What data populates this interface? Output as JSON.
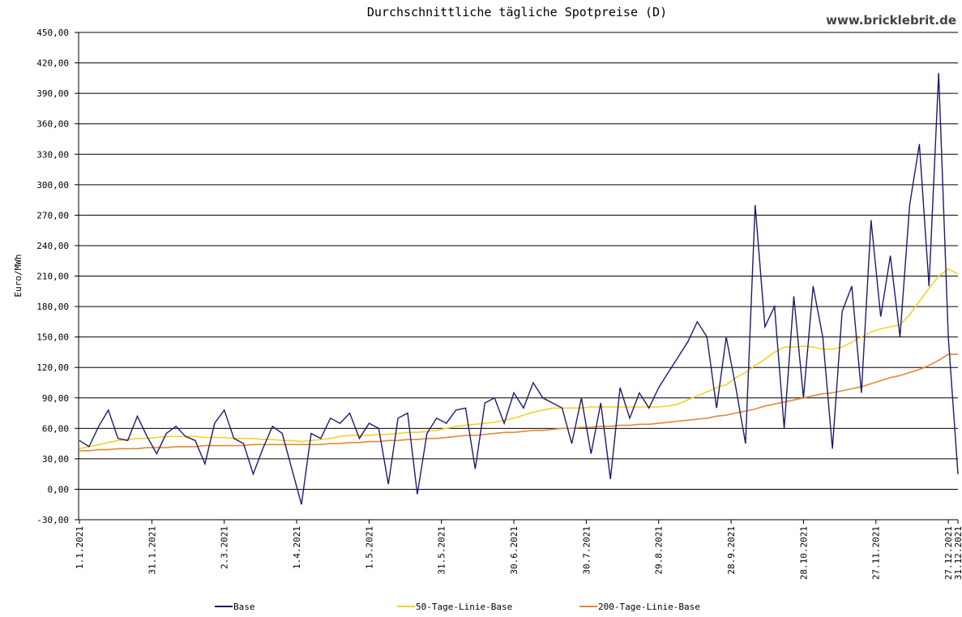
{
  "chart_data": {
    "type": "line",
    "title": "Durchschnittliche tägliche Spotpreise (D)",
    "watermark": "www.bricklebrit.de",
    "y_label": "Euro/MWh",
    "ylim": [
      -30,
      450
    ],
    "yticks": [
      {
        "value": -30,
        "label": "-30,00"
      },
      {
        "value": 0,
        "label": "0,00"
      },
      {
        "value": 30,
        "label": "30,00"
      },
      {
        "value": 60,
        "label": "60,00"
      },
      {
        "value": 90,
        "label": "90,00"
      },
      {
        "value": 120,
        "label": "120,00"
      },
      {
        "value": 150,
        "label": "150,00"
      },
      {
        "value": 180,
        "label": "180,00"
      },
      {
        "value": 210,
        "label": "210,00"
      },
      {
        "value": 240,
        "label": "240,00"
      },
      {
        "value": 270,
        "label": "270,00"
      },
      {
        "value": 300,
        "label": "300,00"
      },
      {
        "value": 330,
        "label": "330,00"
      },
      {
        "value": 360,
        "label": "360,00"
      },
      {
        "value": 390,
        "label": "390,00"
      },
      {
        "value": 420,
        "label": "420,00"
      },
      {
        "value": 450,
        "label": "450,00"
      }
    ],
    "xlim": [
      0,
      364
    ],
    "xticks": [
      {
        "value": 0,
        "label": "1.1.2021"
      },
      {
        "value": 30,
        "label": "31.1.2021"
      },
      {
        "value": 60,
        "label": "2.3.2021"
      },
      {
        "value": 90,
        "label": "1.4.2021"
      },
      {
        "value": 120,
        "label": "1.5.2021"
      },
      {
        "value": 150,
        "label": "31.5.2021"
      },
      {
        "value": 180,
        "label": "30.6.2021"
      },
      {
        "value": 210,
        "label": "30.7.2021"
      },
      {
        "value": 240,
        "label": "29.8.2021"
      },
      {
        "value": 270,
        "label": "28.9.2021"
      },
      {
        "value": 300,
        "label": "28.10.2021"
      },
      {
        "value": 330,
        "label": "27.11.2021"
      },
      {
        "value": 360,
        "label": "27.12.2021"
      },
      {
        "value": 364,
        "label": "31.12.2021"
      }
    ],
    "grid": true,
    "x": [
      0,
      4,
      8,
      12,
      16,
      20,
      24,
      28,
      32,
      36,
      40,
      44,
      48,
      52,
      56,
      60,
      64,
      68,
      72,
      76,
      80,
      84,
      88,
      92,
      96,
      100,
      104,
      108,
      112,
      116,
      120,
      124,
      128,
      132,
      136,
      140,
      144,
      148,
      152,
      156,
      160,
      164,
      168,
      172,
      176,
      180,
      184,
      188,
      192,
      196,
      200,
      204,
      208,
      212,
      216,
      220,
      224,
      228,
      232,
      236,
      240,
      244,
      248,
      252,
      256,
      260,
      264,
      268,
      272,
      276,
      280,
      284,
      288,
      292,
      296,
      300,
      304,
      308,
      312,
      316,
      320,
      324,
      328,
      332,
      336,
      340,
      344,
      348,
      352,
      356,
      360,
      364
    ],
    "series": [
      {
        "name": "Base",
        "color": "#1c1c6e",
        "values": [
          48,
          42,
          62,
          78,
          50,
          48,
          72,
          52,
          35,
          55,
          62,
          52,
          48,
          25,
          65,
          78,
          50,
          45,
          15,
          40,
          62,
          55,
          20,
          -15,
          55,
          50,
          70,
          65,
          75,
          50,
          65,
          60,
          5,
          70,
          75,
          -5,
          55,
          70,
          65,
          78,
          80,
          20,
          85,
          90,
          65,
          95,
          80,
          105,
          90,
          85,
          80,
          45,
          90,
          35,
          85,
          10,
          100,
          70,
          95,
          80,
          100,
          115,
          130,
          145,
          165,
          150,
          80,
          150,
          100,
          45,
          280,
          160,
          180,
          60,
          190,
          90,
          200,
          150,
          40,
          175,
          200,
          95,
          265,
          170,
          230,
          150,
          280,
          340,
          200,
          410,
          150,
          15
        ]
      },
      {
        "name": "50-Tage-Linie-Base",
        "color": "#f2d22a",
        "values": [
          40,
          42,
          44,
          46,
          48,
          49,
          50,
          50,
          51,
          52,
          52,
          52,
          52,
          51,
          51,
          51,
          50,
          50,
          50,
          49,
          49,
          48,
          48,
          47,
          48,
          49,
          50,
          52,
          53,
          53,
          53,
          54,
          54,
          55,
          56,
          56,
          57,
          58,
          60,
          62,
          63,
          64,
          65,
          66,
          68,
          70,
          73,
          76,
          78,
          80,
          80,
          80,
          80,
          81,
          81,
          81,
          81,
          81,
          81,
          81,
          81,
          82,
          84,
          88,
          92,
          96,
          100,
          103,
          110,
          115,
          122,
          128,
          135,
          140,
          140,
          141,
          140,
          138,
          138,
          140,
          145,
          150,
          155,
          158,
          160,
          162,
          172,
          185,
          198,
          210,
          217,
          212
        ]
      },
      {
        "name": "200-Tage-Linie-Base",
        "color": "#e0893a",
        "values": [
          38,
          38,
          39,
          39,
          40,
          40,
          40,
          41,
          41,
          41,
          42,
          42,
          42,
          43,
          43,
          43,
          43,
          43,
          44,
          44,
          44,
          44,
          44,
          44,
          44,
          44,
          45,
          45,
          46,
          46,
          47,
          47,
          48,
          48,
          49,
          49,
          50,
          50,
          51,
          52,
          53,
          53,
          54,
          55,
          56,
          56,
          57,
          58,
          58,
          59,
          60,
          60,
          61,
          61,
          62,
          62,
          63,
          63,
          64,
          64,
          65,
          66,
          67,
          68,
          69,
          70,
          72,
          73,
          75,
          77,
          79,
          82,
          84,
          86,
          88,
          90,
          92,
          94,
          95,
          97,
          99,
          101,
          104,
          107,
          110,
          112,
          115,
          118,
          122,
          127,
          133,
          133
        ]
      }
    ]
  }
}
